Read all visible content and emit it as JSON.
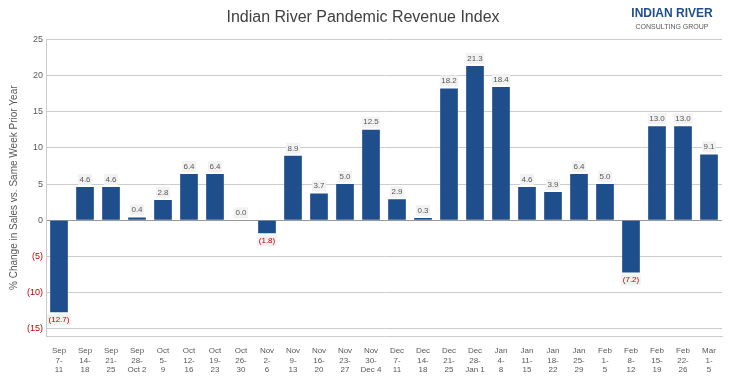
{
  "chart_data": {
    "type": "bar",
    "title": "Indian River Pandemic Revenue Index",
    "ylabel": "% Change in Sales vs. Same Week Prior Year",
    "categories": [
      "Sep\n7-\n11",
      "Sep\n14-\n18",
      "Sep\n21-\n25",
      "Sep\n28-\nOct 2",
      "Oct\n5-\n9",
      "Oct\n12-\n16",
      "Oct\n19-\n23",
      "Oct\n26-\n30",
      "Nov\n2-\n6",
      "Nov\n9-\n13",
      "Nov\n16-\n20",
      "Nov\n23-\n27",
      "Nov\n30-\nDec 4",
      "Dec\n7-\n11",
      "Dec\n14-\n18",
      "Dec\n21-\n25",
      "Dec\n28-\nJan 1",
      "Jan\n4-\n8",
      "Jan\n11-\n15",
      "Jan\n18-\n22",
      "Jan\n25-\n29",
      "Feb\n1-\n5",
      "Feb\n8-\n12",
      "Feb\n15-\n19",
      "Feb\n22-\n26",
      "Mar\n1-\n5"
    ],
    "values": [
      -12.7,
      4.6,
      4.6,
      0.4,
      2.8,
      6.4,
      6.4,
      0.0,
      -1.8,
      8.9,
      3.7,
      5.0,
      12.5,
      2.9,
      0.3,
      18.2,
      21.3,
      18.4,
      4.6,
      3.9,
      6.4,
      5.0,
      -7.2,
      13.0,
      13.0,
      9.1
    ],
    "value_labels": [
      "(12.7)",
      "4.6",
      "4.6",
      "0.4",
      "2.8",
      "6.4",
      "6.4",
      "0.0",
      "(1.8)",
      "8.9",
      "3.7",
      "5.0",
      "12.5",
      "2.9",
      "0.3",
      "18.2",
      "21.3",
      "18.4",
      "4.6",
      "3.9",
      "6.4",
      "5.0",
      "(7.2)",
      "13.0",
      "13.0",
      "9.1"
    ],
    "color": "#1F4E8C",
    "ylim": [
      -16,
      25
    ],
    "yticks": [
      {
        "value": -15,
        "label": "(15)"
      },
      {
        "value": -10,
        "label": "(10)"
      },
      {
        "value": -5,
        "label": "(5)"
      },
      0,
      5,
      10,
      15,
      20,
      25
    ],
    "grid": true,
    "data_labels": true,
    "annotations": [
      "INDIAN RIVER",
      "CONSULTING GROUP"
    ]
  }
}
